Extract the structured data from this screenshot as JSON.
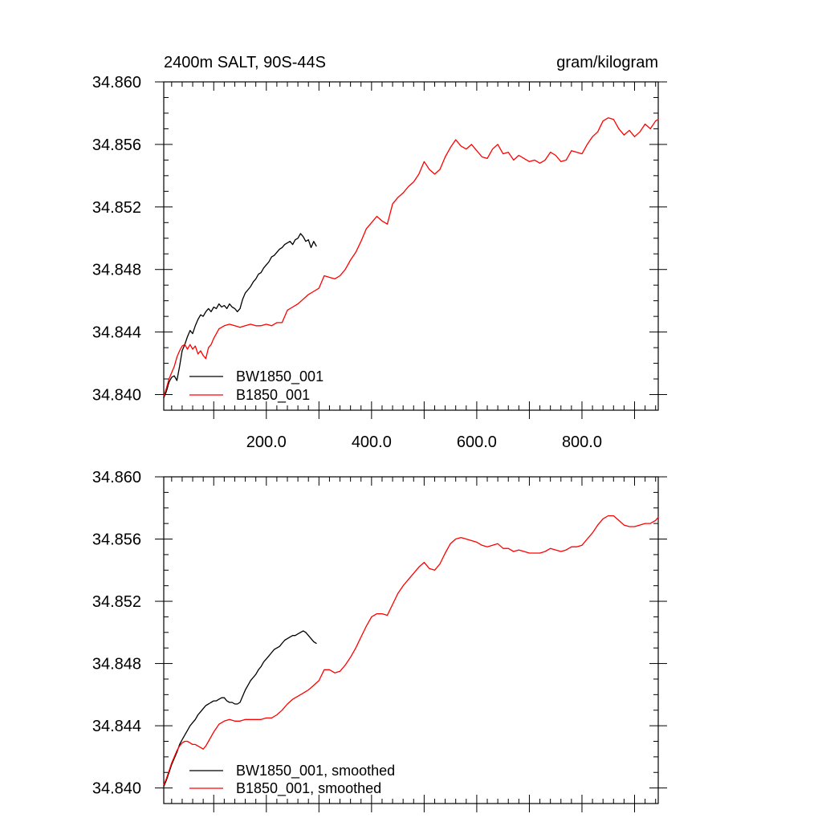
{
  "header": {
    "left_title": "2400m SALT, 90S-44S",
    "right_title": "gram/kilogram"
  },
  "chart_data": [
    {
      "type": "line",
      "panel": "top",
      "xlim": [
        5,
        945
      ],
      "ylim": [
        34.839,
        34.86
      ],
      "y_ticks": [
        "34.840",
        "34.844",
        "34.848",
        "34.852",
        "34.856",
        "34.860"
      ],
      "x_tick_labels": [
        "200.0",
        "400.0",
        "600.0",
        "800.0"
      ],
      "legend": "bottom-left",
      "series": [
        {
          "name": "BW1850_001",
          "color": "#000000",
          "x": [
            5,
            10,
            15,
            20,
            25,
            30,
            35,
            40,
            45,
            50,
            55,
            60,
            65,
            70,
            75,
            80,
            85,
            90,
            95,
            100,
            105,
            110,
            115,
            120,
            125,
            130,
            135,
            140,
            145,
            150,
            155,
            160,
            165,
            170,
            175,
            180,
            185,
            190,
            195,
            200,
            205,
            210,
            215,
            220,
            225,
            230,
            235,
            240,
            245,
            250,
            255,
            260,
            265,
            270,
            275,
            280,
            285,
            290,
            295
          ],
          "values": [
            34.8398,
            34.8402,
            34.8408,
            34.8411,
            34.8412,
            34.8409,
            34.8418,
            34.8428,
            34.8432,
            34.8437,
            34.8441,
            34.8439,
            34.8444,
            34.8448,
            34.8451,
            34.845,
            34.8453,
            34.8455,
            34.8453,
            34.8456,
            34.8455,
            34.8458,
            34.8456,
            34.8457,
            34.8455,
            34.8458,
            34.8456,
            34.8455,
            34.8453,
            34.8455,
            34.8461,
            34.8465,
            34.8467,
            34.8469,
            34.8472,
            34.8474,
            34.8477,
            34.8478,
            34.8481,
            34.8483,
            34.8485,
            34.8488,
            34.8489,
            34.8491,
            34.8493,
            34.8494,
            34.8496,
            34.8497,
            34.8498,
            34.8496,
            34.8499,
            34.85,
            34.8503,
            34.8501,
            34.8498,
            34.8499,
            34.8494,
            34.8498,
            34.8495
          ]
        },
        {
          "name": "B1850_001",
          "color": "#ff0000",
          "x": [
            5,
            10,
            15,
            20,
            25,
            30,
            35,
            40,
            45,
            50,
            55,
            60,
            65,
            70,
            75,
            80,
            85,
            90,
            95,
            100,
            110,
            120,
            130,
            140,
            150,
            160,
            170,
            180,
            190,
            200,
            210,
            220,
            230,
            240,
            250,
            260,
            270,
            280,
            290,
            300,
            310,
            320,
            330,
            340,
            350,
            360,
            370,
            380,
            390,
            400,
            410,
            420,
            430,
            440,
            450,
            460,
            470,
            480,
            490,
            500,
            510,
            520,
            530,
            540,
            550,
            560,
            570,
            580,
            590,
            600,
            610,
            620,
            630,
            640,
            650,
            660,
            670,
            680,
            690,
            700,
            710,
            720,
            730,
            740,
            750,
            760,
            770,
            780,
            790,
            800,
            810,
            820,
            830,
            840,
            850,
            860,
            870,
            880,
            890,
            900,
            910,
            920,
            930,
            940,
            945
          ],
          "values": [
            34.8399,
            34.8404,
            34.841,
            34.8414,
            34.8418,
            34.8424,
            34.8428,
            34.8431,
            34.8432,
            34.8429,
            34.8432,
            34.8429,
            34.8431,
            34.8426,
            34.8428,
            34.8425,
            34.8423,
            34.843,
            34.8432,
            34.8436,
            34.8442,
            34.8444,
            34.8445,
            34.8444,
            34.8443,
            34.8444,
            34.8445,
            34.8444,
            34.8444,
            34.8445,
            34.8444,
            34.8446,
            34.8446,
            34.8454,
            34.8456,
            34.8458,
            34.8461,
            34.8464,
            34.8466,
            34.8468,
            34.8476,
            34.8475,
            34.8474,
            34.8476,
            34.848,
            34.8486,
            34.8491,
            34.8498,
            34.8506,
            34.851,
            34.8514,
            34.8511,
            34.8509,
            34.8522,
            34.8526,
            34.8529,
            34.8533,
            34.8536,
            34.8541,
            34.8549,
            34.8544,
            34.8541,
            34.8544,
            34.8552,
            34.8558,
            34.8563,
            34.8559,
            34.8557,
            34.856,
            34.8556,
            34.8552,
            34.8551,
            34.8557,
            34.856,
            34.8554,
            34.8555,
            34.855,
            34.8553,
            34.8551,
            34.8549,
            34.855,
            34.8548,
            34.855,
            34.8555,
            34.8553,
            34.8549,
            34.855,
            34.8556,
            34.8555,
            34.8554,
            34.856,
            34.8565,
            34.8568,
            34.8575,
            34.8577,
            34.8576,
            34.857,
            34.8566,
            34.8569,
            34.8565,
            34.8568,
            34.8573,
            34.857,
            34.8575,
            34.8576
          ]
        }
      ]
    },
    {
      "type": "line",
      "panel": "bottom",
      "xlim": [
        5,
        945
      ],
      "ylim": [
        34.839,
        34.86
      ],
      "y_ticks": [
        "34.840",
        "34.844",
        "34.848",
        "34.852",
        "34.856",
        "34.860"
      ],
      "legend": "bottom-left",
      "series": [
        {
          "name": "BW1850_001, smoothed",
          "color": "#000000",
          "x": [
            5,
            10,
            15,
            20,
            25,
            30,
            35,
            40,
            45,
            50,
            55,
            60,
            65,
            70,
            75,
            80,
            85,
            90,
            95,
            100,
            105,
            110,
            115,
            120,
            125,
            130,
            135,
            140,
            145,
            150,
            155,
            160,
            165,
            170,
            175,
            180,
            185,
            190,
            195,
            200,
            205,
            210,
            215,
            220,
            225,
            230,
            235,
            240,
            245,
            250,
            255,
            260,
            265,
            270,
            275,
            280,
            285,
            290,
            295
          ],
          "values": [
            34.8401,
            34.8405,
            34.841,
            34.8415,
            34.8419,
            34.8423,
            34.8428,
            34.8431,
            34.8434,
            34.8437,
            34.844,
            34.8442,
            34.8444,
            34.8447,
            34.8449,
            34.8451,
            34.8453,
            34.8454,
            34.8455,
            34.8456,
            34.8456,
            34.8457,
            34.8458,
            34.8458,
            34.8456,
            34.8455,
            34.8455,
            34.8454,
            34.8454,
            34.8455,
            34.8459,
            34.8463,
            34.8466,
            34.8469,
            34.8471,
            34.8473,
            34.8476,
            34.8478,
            34.8481,
            34.8483,
            34.8485,
            34.8487,
            34.8489,
            34.849,
            34.8491,
            34.8493,
            34.8495,
            34.8496,
            34.8497,
            34.8498,
            34.8498,
            34.8499,
            34.85,
            34.8501,
            34.85,
            34.8498,
            34.8496,
            34.8494,
            34.8493
          ]
        },
        {
          "name": "B1850_001, smoothed",
          "color": "#ff0000",
          "x": [
            5,
            10,
            15,
            20,
            25,
            30,
            35,
            40,
            45,
            50,
            55,
            60,
            65,
            70,
            75,
            80,
            85,
            90,
            95,
            100,
            110,
            120,
            130,
            140,
            150,
            160,
            170,
            180,
            190,
            200,
            210,
            220,
            230,
            240,
            250,
            260,
            270,
            280,
            290,
            300,
            310,
            320,
            330,
            340,
            350,
            360,
            370,
            380,
            390,
            400,
            410,
            420,
            430,
            440,
            450,
            460,
            470,
            480,
            490,
            500,
            510,
            520,
            530,
            540,
            550,
            560,
            570,
            580,
            590,
            600,
            610,
            620,
            630,
            640,
            650,
            660,
            670,
            680,
            690,
            700,
            710,
            720,
            730,
            740,
            750,
            760,
            770,
            780,
            790,
            800,
            810,
            820,
            830,
            840,
            850,
            860,
            870,
            880,
            890,
            900,
            910,
            920,
            930,
            940,
            945
          ],
          "values": [
            34.8402,
            34.8406,
            34.8411,
            34.8416,
            34.842,
            34.8424,
            34.8427,
            34.8429,
            34.843,
            34.843,
            34.8429,
            34.8428,
            34.8428,
            34.8427,
            34.8426,
            34.8425,
            34.8427,
            34.843,
            34.8433,
            34.8436,
            34.8441,
            34.8443,
            34.8444,
            34.8443,
            34.8443,
            34.8444,
            34.8444,
            34.8444,
            34.8444,
            34.8445,
            34.8445,
            34.8447,
            34.845,
            34.8454,
            34.8457,
            34.8459,
            34.8461,
            34.8463,
            34.8466,
            34.8469,
            34.8476,
            34.8476,
            34.8474,
            34.8475,
            34.8479,
            34.8484,
            34.849,
            34.8497,
            34.8504,
            34.851,
            34.8512,
            34.8512,
            34.8511,
            34.8518,
            34.8525,
            34.853,
            34.8534,
            34.8538,
            34.8542,
            34.8545,
            34.8541,
            34.854,
            34.8544,
            34.8551,
            34.8557,
            34.856,
            34.8561,
            34.856,
            34.8559,
            34.8558,
            34.8556,
            34.8555,
            34.8556,
            34.8557,
            34.8554,
            34.8554,
            34.8552,
            34.8553,
            34.8552,
            34.8551,
            34.8551,
            34.8551,
            34.8552,
            34.8554,
            34.8553,
            34.8552,
            34.8553,
            34.8555,
            34.8555,
            34.8556,
            34.856,
            34.8564,
            34.8569,
            34.8573,
            34.8575,
            34.8575,
            34.8572,
            34.8569,
            34.8568,
            34.8568,
            34.8569,
            34.857,
            34.857,
            34.8572,
            34.8574
          ]
        }
      ]
    }
  ]
}
